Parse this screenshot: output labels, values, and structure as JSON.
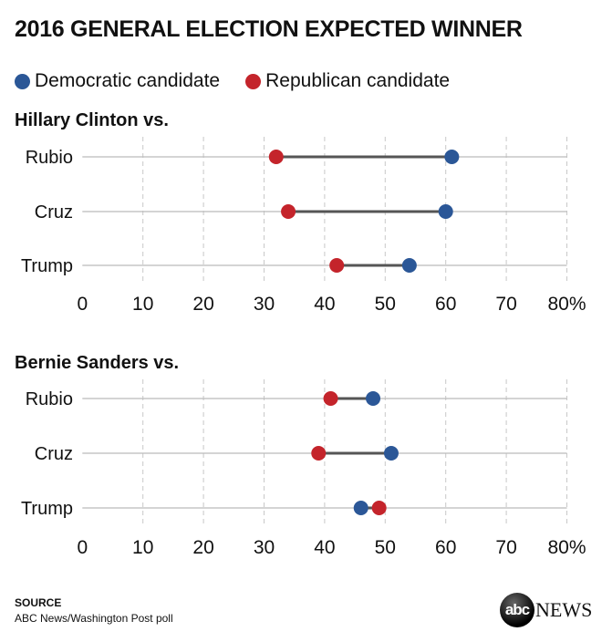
{
  "title": "2016 GENERAL ELECTION EXPECTED WINNER",
  "legend": [
    {
      "label": "Democratic candidate",
      "color": "#2b5797"
    },
    {
      "label": "Republican candidate",
      "color": "#c4242b"
    }
  ],
  "chart_data": [
    {
      "type": "dot-range",
      "title": "Hillary Clinton vs.",
      "categories": [
        "Rubio",
        "Cruz",
        "Trump"
      ],
      "series": [
        {
          "name": "Democratic candidate",
          "values": [
            61,
            60,
            54
          ]
        },
        {
          "name": "Republican candidate",
          "values": [
            32,
            34,
            42
          ]
        }
      ],
      "xlim": [
        0,
        80
      ],
      "xticks": [
        "0",
        "10",
        "20",
        "30",
        "40",
        "50",
        "60",
        "70",
        "80%"
      ],
      "grid": true
    },
    {
      "type": "dot-range",
      "title": "Bernie Sanders vs.",
      "categories": [
        "Rubio",
        "Cruz",
        "Trump"
      ],
      "series": [
        {
          "name": "Democratic candidate",
          "values": [
            48,
            51,
            46
          ]
        },
        {
          "name": "Republican candidate",
          "values": [
            41,
            39,
            49
          ]
        }
      ],
      "xlim": [
        0,
        80
      ],
      "xticks": [
        "0",
        "10",
        "20",
        "30",
        "40",
        "50",
        "60",
        "70",
        "80%"
      ],
      "grid": true
    }
  ],
  "source": {
    "heading": "SOURCE",
    "text": "ABC News/Washington Post poll"
  },
  "logo": {
    "text": "abc NEWS",
    "ball": "abc",
    "word": "NEWS"
  }
}
